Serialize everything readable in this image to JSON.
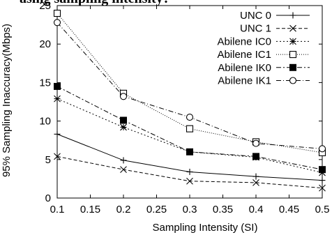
{
  "top_text": "asing sampling intensity?",
  "chart_data": {
    "type": "line",
    "title": "",
    "xlabel": "Sampling Intensity (SI)",
    "ylabel": "95% Sampling Inaccuracy(Mbps)",
    "xlim": [
      0.1,
      0.5
    ],
    "ylim": [
      0,
      25
    ],
    "xticks": [
      "0.1",
      "0.15",
      "0.2",
      "0.25",
      "0.3",
      "0.35",
      "0.4",
      "0.45",
      "0.5"
    ],
    "yticks": [
      "0",
      "5",
      "10",
      "15",
      "20",
      "25"
    ],
    "x": [
      0.1,
      0.2,
      0.3,
      0.4,
      0.5
    ],
    "grid": false,
    "legend_position": "top-right",
    "series": [
      {
        "name": "UNC 0",
        "marker": "plus",
        "dash": "",
        "values": [
          8.3,
          4.9,
          3.4,
          2.8,
          2.3
        ]
      },
      {
        "name": "UNC 1",
        "marker": "x",
        "dash": "5,3",
        "values": [
          5.4,
          3.7,
          2.2,
          2.0,
          1.3
        ]
      },
      {
        "name": "Abilene IC0",
        "marker": "star",
        "dash": "2,3",
        "values": [
          12.9,
          9.2,
          6.0,
          5.3,
          3.3
        ]
      },
      {
        "name": "Abilene IC1",
        "marker": "open-square",
        "dash": "1,2",
        "values": [
          24.0,
          13.6,
          9.0,
          7.3,
          5.9
        ]
      },
      {
        "name": "Abilene IK0",
        "marker": "filled-square",
        "dash": "7,3,2,3",
        "values": [
          14.5,
          10.1,
          6.0,
          5.4,
          3.7
        ]
      },
      {
        "name": "Abilene IK1",
        "marker": "open-circle",
        "dash": "7,3,1,3",
        "values": [
          22.8,
          13.2,
          10.5,
          7.1,
          6.4
        ]
      }
    ]
  }
}
